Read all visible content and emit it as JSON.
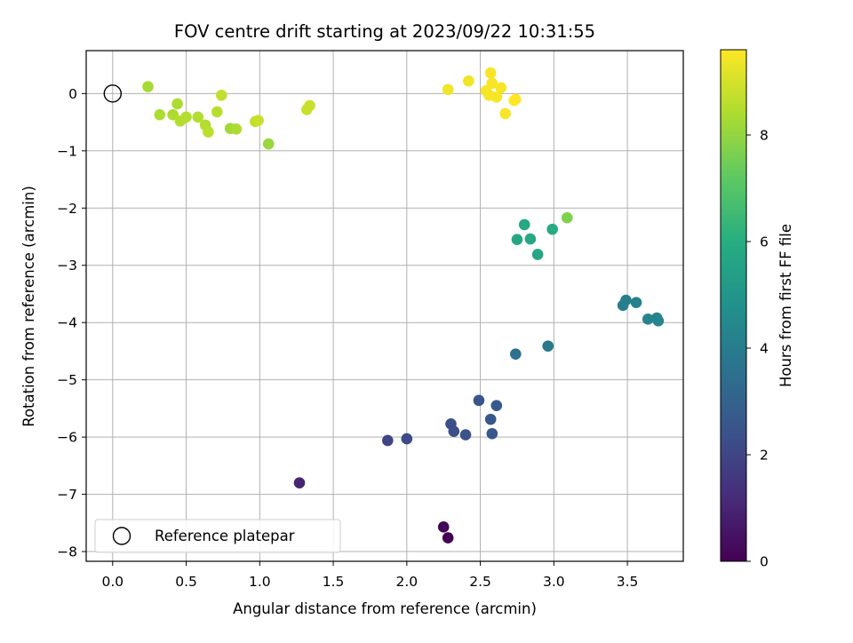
{
  "chart_data": {
    "type": "scatter",
    "title": "FOV centre drift starting at 2023/09/22 10:31:55",
    "xlabel": "Angular distance from reference (arcmin)",
    "ylabel": "Rotation from reference (arcmin)",
    "xlim": [
      -0.18,
      3.88
    ],
    "ylim": [
      -8.17,
      0.75
    ],
    "xticks": [
      0.0,
      0.5,
      1.0,
      1.5,
      2.0,
      2.5,
      3.0,
      3.5
    ],
    "xtick_labels": [
      "0.0",
      "0.5",
      "1.0",
      "1.5",
      "2.0",
      "2.5",
      "3.0",
      "3.5"
    ],
    "yticks": [
      0,
      -1,
      -2,
      -3,
      -4,
      -5,
      -6,
      -7,
      -8
    ],
    "ytick_labels": [
      "0",
      "−1",
      "−2",
      "−3",
      "−4",
      "−5",
      "−6",
      "−7",
      "−8"
    ],
    "grid": true,
    "legend": {
      "placement": "lower-left",
      "entries": [
        "Reference platepar"
      ]
    },
    "reference_point": {
      "x": 0.0,
      "y": 0.0
    },
    "colorbar": {
      "label": "Hours from first FF file",
      "colormap": "viridis",
      "range": [
        0,
        9.6
      ],
      "ticks": [
        0,
        2,
        4,
        6,
        8
      ],
      "tick_labels": [
        "0",
        "2",
        "4",
        "6",
        "8"
      ]
    },
    "points": [
      {
        "x": 2.28,
        "y": -7.76,
        "h": 0.0
      },
      {
        "x": 2.25,
        "y": -7.57,
        "h": 0.1
      },
      {
        "x": 1.27,
        "y": -6.8,
        "h": 1.0
      },
      {
        "x": 1.87,
        "y": -6.06,
        "h": 2.0
      },
      {
        "x": 2.0,
        "y": -6.03,
        "h": 2.1
      },
      {
        "x": 2.3,
        "y": -5.77,
        "h": 2.3
      },
      {
        "x": 2.32,
        "y": -5.9,
        "h": 2.3
      },
      {
        "x": 2.4,
        "y": -5.96,
        "h": 2.4
      },
      {
        "x": 2.49,
        "y": -5.36,
        "h": 2.5
      },
      {
        "x": 2.57,
        "y": -5.69,
        "h": 2.6
      },
      {
        "x": 2.58,
        "y": -5.94,
        "h": 2.6
      },
      {
        "x": 2.61,
        "y": -5.45,
        "h": 2.7
      },
      {
        "x": 2.74,
        "y": -4.55,
        "h": 3.6
      },
      {
        "x": 2.96,
        "y": -4.41,
        "h": 3.8
      },
      {
        "x": 3.47,
        "y": -3.7,
        "h": 4.1
      },
      {
        "x": 3.49,
        "y": -3.61,
        "h": 4.1
      },
      {
        "x": 3.56,
        "y": -3.65,
        "h": 4.2
      },
      {
        "x": 3.64,
        "y": -3.94,
        "h": 4.3
      },
      {
        "x": 3.7,
        "y": -3.92,
        "h": 4.3
      },
      {
        "x": 3.71,
        "y": -3.97,
        "h": 4.3
      },
      {
        "x": 2.75,
        "y": -2.55,
        "h": 5.7
      },
      {
        "x": 2.8,
        "y": -2.29,
        "h": 5.8
      },
      {
        "x": 2.84,
        "y": -2.54,
        "h": 5.8
      },
      {
        "x": 2.89,
        "y": -2.81,
        "h": 5.7
      },
      {
        "x": 2.99,
        "y": -2.37,
        "h": 5.9
      },
      {
        "x": 3.09,
        "y": -2.17,
        "h": 7.7
      },
      {
        "x": 0.24,
        "y": 0.12,
        "h": 8.3
      },
      {
        "x": 0.32,
        "y": -0.37,
        "h": 8.4
      },
      {
        "x": 0.41,
        "y": -0.37,
        "h": 8.4
      },
      {
        "x": 0.44,
        "y": -0.18,
        "h": 8.4
      },
      {
        "x": 0.46,
        "y": -0.48,
        "h": 8.5
      },
      {
        "x": 0.5,
        "y": -0.41,
        "h": 8.5
      },
      {
        "x": 0.58,
        "y": -0.41,
        "h": 8.5
      },
      {
        "x": 0.63,
        "y": -0.55,
        "h": 8.5
      },
      {
        "x": 0.65,
        "y": -0.67,
        "h": 8.6
      },
      {
        "x": 0.71,
        "y": -0.32,
        "h": 8.6
      },
      {
        "x": 0.74,
        "y": -0.03,
        "h": 8.7
      },
      {
        "x": 0.8,
        "y": -0.61,
        "h": 8.2
      },
      {
        "x": 0.84,
        "y": -0.62,
        "h": 8.4
      },
      {
        "x": 0.97,
        "y": -0.49,
        "h": 8.7
      },
      {
        "x": 0.99,
        "y": -0.47,
        "h": 8.8
      },
      {
        "x": 1.06,
        "y": -0.88,
        "h": 8.1
      },
      {
        "x": 1.32,
        "y": -0.28,
        "h": 8.8
      },
      {
        "x": 1.34,
        "y": -0.21,
        "h": 8.8
      },
      {
        "x": 2.28,
        "y": 0.07,
        "h": 9.4
      },
      {
        "x": 2.42,
        "y": 0.22,
        "h": 9.4
      },
      {
        "x": 2.54,
        "y": 0.05,
        "h": 9.5
      },
      {
        "x": 2.56,
        "y": -0.03,
        "h": 9.5
      },
      {
        "x": 2.57,
        "y": 0.36,
        "h": 9.5
      },
      {
        "x": 2.58,
        "y": 0.18,
        "h": 9.5
      },
      {
        "x": 2.61,
        "y": -0.06,
        "h": 9.5
      },
      {
        "x": 2.64,
        "y": 0.1,
        "h": 9.5
      },
      {
        "x": 2.67,
        "y": -0.35,
        "h": 9.5
      },
      {
        "x": 2.73,
        "y": -0.12,
        "h": 9.6
      },
      {
        "x": 2.74,
        "y": -0.1,
        "h": 9.6
      }
    ]
  }
}
